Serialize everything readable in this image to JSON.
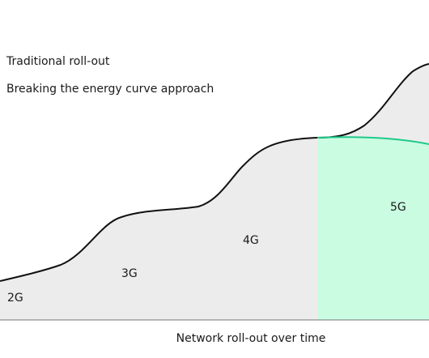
{
  "legend": {
    "items": [
      "Traditional roll-out",
      "Breaking the energy curve approach"
    ]
  },
  "generations": [
    "2G",
    "3G",
    "4G",
    "5G"
  ],
  "x_axis_label": "Network roll-out over time"
}
